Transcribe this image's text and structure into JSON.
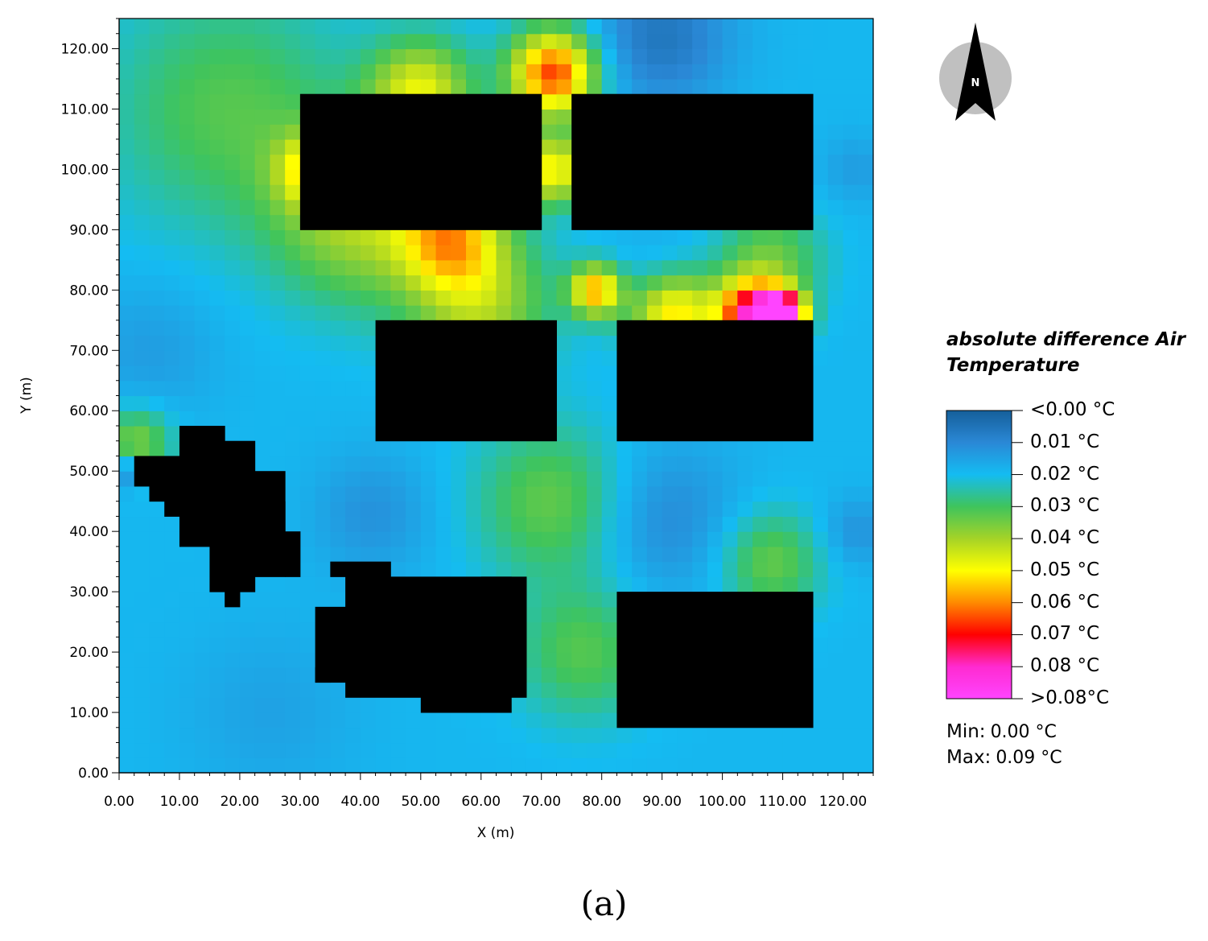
{
  "chart_data": {
    "type": "heatmap",
    "title": "",
    "xlabel": "X (m)",
    "ylabel": "Y (m)",
    "xlim": [
      0,
      125
    ],
    "ylim": [
      0,
      125
    ],
    "cell_size_m": 2.5,
    "x_ticks": [
      "0.00",
      "10.00",
      "20.00",
      "30.00",
      "40.00",
      "50.00",
      "60.00",
      "70.00",
      "80.00",
      "90.00",
      "100.00",
      "110.00",
      "120.00"
    ],
    "y_ticks": [
      "0.00",
      "10.00",
      "20.00",
      "30.00",
      "40.00",
      "50.00",
      "60.00",
      "70.00",
      "80.00",
      "90.00",
      "100.00",
      "110.00",
      "120.00"
    ],
    "grid": false,
    "colorbar": {
      "title": "absolute difference Air Temperature",
      "range": [
        0.0,
        0.08
      ],
      "labels": [
        "<0.00 °C",
        "0.01 °C",
        "0.02 °C",
        "0.03 °C",
        "0.04 °C",
        "0.05 °C",
        "0.06 °C",
        "0.07 °C",
        "0.08 °C",
        ">0.08°C"
      ],
      "colors": [
        "#155f9a",
        "#2a88d6",
        "#14bcf2",
        "#3fc45c",
        "#a5d327",
        "#ffff00",
        "#ff8a00",
        "#ff0000",
        "#ff2ad0",
        "#ff44ff"
      ]
    },
    "min_label": "Min:",
    "min_value": "0.00 °C",
    "max_label": "Max:",
    "max_value": "0.09 °C",
    "buildings": [
      [
        30,
        90,
        70,
        112.5
      ],
      [
        75,
        90,
        115,
        112.5
      ],
      [
        42.5,
        55,
        72.5,
        75
      ],
      [
        82.5,
        55,
        115,
        75
      ],
      [
        82.5,
        7.5,
        115,
        30
      ],
      [
        37.5,
        12.5,
        67.5,
        32.5
      ],
      [
        35,
        32.5,
        45,
        35
      ],
      [
        32.5,
        15,
        37.5,
        27.5
      ],
      [
        32.5,
        15,
        35,
        17.5
      ],
      [
        50,
        10,
        65,
        12.5
      ],
      [
        60,
        30,
        65,
        32.5
      ],
      [
        2.5,
        47.5,
        10,
        52.5
      ],
      [
        5,
        45,
        10,
        47.5
      ],
      [
        7.5,
        42.5,
        10,
        45
      ],
      [
        10,
        37.5,
        15,
        52.5
      ],
      [
        10,
        52.5,
        17.5,
        57.5
      ],
      [
        15,
        30,
        22.5,
        55
      ],
      [
        17.5,
        27.5,
        20,
        30
      ],
      [
        22.5,
        32.5,
        27.5,
        50
      ],
      [
        27.5,
        32.5,
        30,
        40
      ],
      [
        25,
        40,
        27.5,
        45
      ]
    ],
    "field_sources": [
      {
        "x": 72,
        "y": 116,
        "v": 0.066,
        "r": 5
      },
      {
        "x": 72,
        "y": 100,
        "v": 0.05,
        "r": 4
      },
      {
        "x": 55,
        "y": 89,
        "v": 0.048,
        "r": 6
      },
      {
        "x": 32,
        "y": 100,
        "v": 0.042,
        "r": 4
      },
      {
        "x": 50,
        "y": 113,
        "v": 0.046,
        "r": 6
      },
      {
        "x": 105,
        "y": 76,
        "v": 0.075,
        "r": 4
      },
      {
        "x": 110,
        "y": 76,
        "v": 0.09,
        "r": 2.5
      },
      {
        "x": 92,
        "y": 76,
        "v": 0.052,
        "r": 5
      },
      {
        "x": 79,
        "y": 80,
        "v": 0.056,
        "r": 3
      },
      {
        "x": 60,
        "y": 78,
        "v": 0.04,
        "r": 8
      },
      {
        "x": 72,
        "y": 45,
        "v": 0.034,
        "r": 9
      },
      {
        "x": 77,
        "y": 20,
        "v": 0.032,
        "r": 8
      },
      {
        "x": 40,
        "y": 92,
        "v": 0.04,
        "r": 10
      },
      {
        "x": 18,
        "y": 110,
        "v": 0.032,
        "r": 14
      },
      {
        "x": 3,
        "y": 55,
        "v": 0.036,
        "r": 4
      },
      {
        "x": 108,
        "y": 35,
        "v": 0.034,
        "r": 6
      },
      {
        "x": 108,
        "y": 85,
        "v": 0.034,
        "r": 6
      },
      {
        "x": 90,
        "y": 122,
        "v": 0.006,
        "r": 8
      },
      {
        "x": 90,
        "y": 42,
        "v": 0.01,
        "r": 9
      },
      {
        "x": 42,
        "y": 43,
        "v": 0.012,
        "r": 7
      },
      {
        "x": 5,
        "y": 70,
        "v": 0.014,
        "r": 8
      },
      {
        "x": 122,
        "y": 40,
        "v": 0.012,
        "r": 4
      },
      {
        "x": 122,
        "y": 100,
        "v": 0.014,
        "r": 4
      },
      {
        "x": 25,
        "y": 10,
        "v": 0.015,
        "r": 10
      },
      {
        "x": 90,
        "y": 84,
        "v": 0.016,
        "r": 5
      },
      {
        "x": 1,
        "y": 50,
        "v": 0.008,
        "r": 2
      }
    ]
  },
  "north_arrow": {
    "label": "N"
  },
  "caption": "(a)"
}
